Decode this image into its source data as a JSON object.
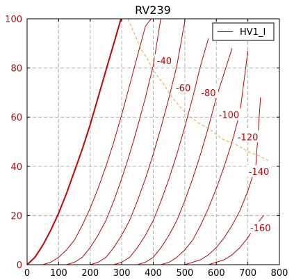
{
  "chart_data": {
    "type": "line",
    "title": "RV239",
    "xlabel": "",
    "ylabel": "",
    "xlim": [
      0,
      800
    ],
    "ylim": [
      0,
      100
    ],
    "xticks": [
      0,
      100,
      200,
      300,
      400,
      500,
      600,
      700,
      800
    ],
    "yticks": [
      0,
      20,
      40,
      60,
      80,
      100
    ],
    "grid": true,
    "legend": {
      "placement": "top-right",
      "entries": [
        "HV1_I"
      ]
    },
    "series_color": "#cc0000",
    "limit_color": "#f0a830",
    "series": [
      {
        "name": "HV1_I",
        "grid_voltage": "0",
        "x": [
          0,
          25,
          50,
          75,
          100,
          125,
          150,
          175,
          200,
          225,
          250,
          275,
          300
        ],
        "y": [
          0,
          3,
          8,
          14,
          21,
          29,
          38,
          47,
          57,
          68,
          79,
          90,
          101
        ]
      },
      {
        "grid_voltage": "-20",
        "x": [
          0,
          50,
          75,
          100,
          125,
          150,
          175,
          200,
          225,
          250,
          275,
          300,
          325,
          350,
          375,
          400
        ],
        "y": [
          0,
          0,
          1,
          3,
          6,
          10,
          16,
          23,
          31,
          40,
          50,
          61,
          73,
          85,
          97,
          101
        ]
      },
      {
        "grid_voltage": "-40",
        "x": [
          0,
          125,
          150,
          175,
          200,
          225,
          250,
          275,
          300,
          325,
          350,
          375,
          400,
          425
        ],
        "y": [
          0,
          0,
          1,
          3,
          7,
          12,
          18,
          26,
          35,
          45,
          56,
          68,
          81,
          101
        ]
      },
      {
        "grid_voltage": "-60",
        "x": [
          0,
          200,
          225,
          250,
          275,
          300,
          325,
          350,
          375,
          400,
          425,
          450,
          475,
          500
        ],
        "y": [
          0,
          0,
          1,
          3,
          7,
          12,
          18,
          26,
          35,
          45,
          56,
          68,
          81,
          99
        ]
      },
      {
        "grid_voltage": "-80",
        "x": [
          0,
          275,
          300,
          325,
          350,
          375,
          400,
          425,
          450,
          475,
          500,
          525,
          550,
          575
        ],
        "y": [
          0,
          0,
          1,
          3,
          7,
          12,
          18,
          26,
          35,
          45,
          56,
          68,
          81,
          92
        ]
      },
      {
        "grid_voltage": "-100",
        "x": [
          0,
          350,
          375,
          400,
          425,
          450,
          475,
          500,
          525,
          550,
          575,
          600,
          625,
          650
        ],
        "y": [
          0,
          0,
          1,
          3,
          7,
          12,
          18,
          26,
          35,
          45,
          56,
          68,
          78,
          88
        ]
      },
      {
        "grid_voltage": "-120",
        "x": [
          0,
          425,
          450,
          475,
          500,
          525,
          550,
          575,
          600,
          625,
          650,
          675,
          700
        ],
        "y": [
          0,
          0,
          1,
          3,
          6,
          10,
          16,
          23,
          31,
          40,
          50,
          62,
          87
        ]
      },
      {
        "grid_voltage": "-140",
        "x": [
          0,
          500,
          525,
          550,
          575,
          600,
          625,
          650,
          675,
          700,
          725,
          740
        ],
        "y": [
          0,
          0,
          1,
          2,
          4,
          7,
          11,
          16,
          22,
          30,
          40,
          68
        ]
      },
      {
        "grid_voltage": "-160",
        "x": [
          0,
          575,
          600,
          625,
          650,
          675,
          700,
          725,
          750
        ],
        "y": [
          0,
          0,
          1,
          2,
          4,
          7,
          11,
          16,
          20
        ]
      }
    ],
    "plate_dissipation_limit": {
      "x": [
        320,
        340,
        360,
        380,
        400,
        430,
        460,
        500,
        540,
        580,
        620,
        660,
        700,
        740,
        770
      ],
      "y": [
        100,
        94,
        88,
        84,
        79,
        74,
        68,
        62,
        58,
        55,
        51,
        49,
        46,
        44,
        42
      ]
    },
    "annotations": [
      {
        "text": "-40",
        "x": 435,
        "y": 83
      },
      {
        "text": "-60",
        "x": 495,
        "y": 72
      },
      {
        "text": "-80",
        "x": 575,
        "y": 70
      },
      {
        "text": "-100",
        "x": 640,
        "y": 61
      },
      {
        "text": "-120",
        "x": 700,
        "y": 52
      },
      {
        "text": "-140",
        "x": 735,
        "y": 38
      },
      {
        "text": "-160",
        "x": 740,
        "y": 15
      }
    ]
  }
}
